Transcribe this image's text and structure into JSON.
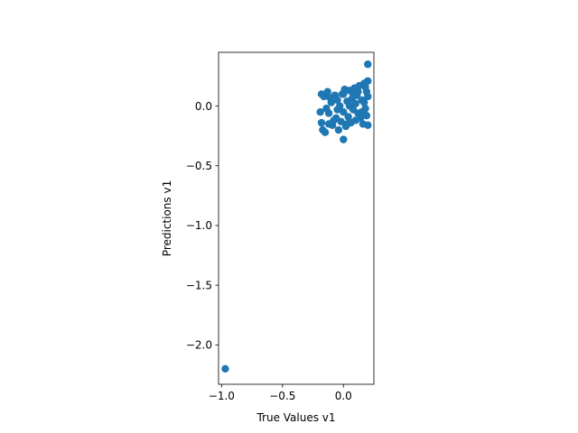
{
  "chart_data": {
    "type": "scatter",
    "title": "",
    "xlabel": "True Values v1",
    "ylabel": "Predictions v1",
    "xlim": [
      -1.025,
      0.25
    ],
    "ylim": [
      -2.33,
      0.45
    ],
    "xticks": [
      -1.0,
      -0.5,
      0.0
    ],
    "xtick_labels": [
      "−1.0",
      "−0.5",
      "0.0"
    ],
    "yticks": [
      -2.0,
      -1.5,
      -1.0,
      -0.5,
      0.0
    ],
    "ytick_labels": [
      "−2.0",
      "−1.5",
      "−1.0",
      "−0.5",
      "0.0"
    ],
    "grid": false,
    "marker_color": "#1f77b4",
    "points": [
      [
        -0.97,
        -2.2
      ],
      [
        0.2,
        0.35
      ],
      [
        0.0,
        -0.28
      ],
      [
        -0.18,
        0.1
      ],
      [
        -0.17,
        -0.2
      ],
      [
        -0.19,
        -0.05
      ],
      [
        -0.16,
        0.08
      ],
      [
        -0.18,
        -0.14
      ],
      [
        -0.15,
        -0.22
      ],
      [
        -0.13,
        0.12
      ],
      [
        -0.12,
        -0.06
      ],
      [
        -0.1,
        0.03
      ],
      [
        -0.09,
        -0.16
      ],
      [
        -0.07,
        0.09
      ],
      [
        -0.06,
        -0.1
      ],
      [
        -0.05,
        0.05
      ],
      [
        -0.04,
        -0.2
      ],
      [
        -0.03,
        0.0
      ],
      [
        -0.02,
        -0.13
      ],
      [
        -0.01,
        0.1
      ],
      [
        0.0,
        -0.05
      ],
      [
        0.01,
        0.14
      ],
      [
        0.02,
        -0.17
      ],
      [
        0.03,
        0.04
      ],
      [
        0.04,
        -0.09
      ],
      [
        0.05,
        0.13
      ],
      [
        0.06,
        -0.14
      ],
      [
        0.07,
        0.06
      ],
      [
        0.08,
        -0.03
      ],
      [
        0.09,
        0.15
      ],
      [
        0.1,
        -0.12
      ],
      [
        0.11,
        0.09
      ],
      [
        0.12,
        -0.06
      ],
      [
        0.13,
        0.17
      ],
      [
        0.14,
        -0.1
      ],
      [
        0.15,
        0.05
      ],
      [
        0.16,
        -0.15
      ],
      [
        0.17,
        0.19
      ],
      [
        0.18,
        -0.02
      ],
      [
        0.19,
        0.12
      ],
      [
        0.2,
        -0.16
      ],
      [
        0.2,
        0.21
      ],
      [
        0.2,
        0.08
      ],
      [
        0.19,
        -0.08
      ],
      [
        0.18,
        0.16
      ],
      [
        -0.14,
        -0.02
      ],
      [
        -0.11,
        0.07
      ],
      [
        -0.08,
        -0.12
      ],
      [
        0.05,
        0.0
      ],
      [
        0.1,
        0.02
      ],
      [
        0.15,
        -0.05
      ],
      [
        -0.05,
        -0.03
      ],
      [
        0.0,
        0.1
      ],
      [
        0.12,
        0.12
      ],
      [
        0.08,
        0.1
      ],
      [
        -0.12,
        -0.15
      ],
      [
        0.03,
        -0.15
      ],
      [
        0.17,
        0.03
      ]
    ]
  }
}
